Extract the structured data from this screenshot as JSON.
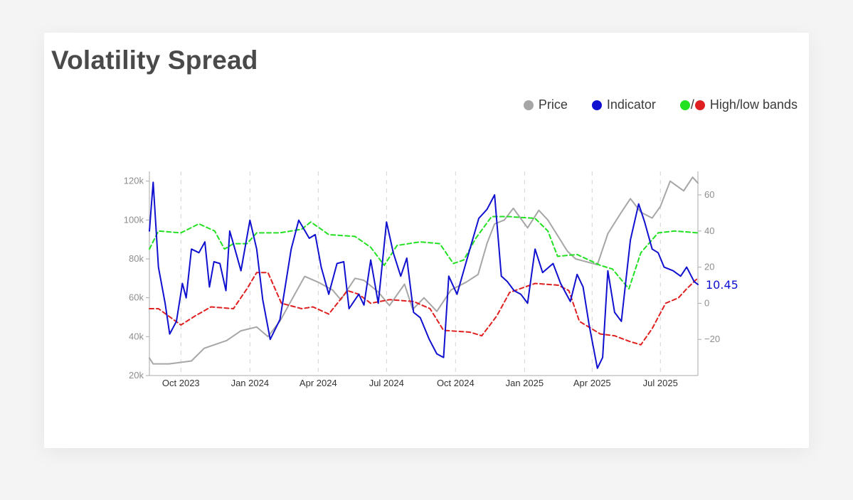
{
  "card": {
    "title": "Volatility Spread"
  },
  "legend": {
    "price_label": "Price",
    "indicator_label": "Indicator",
    "bands_slash": "/",
    "bands_label": "High/low bands"
  },
  "colors": {
    "price": "#a6a6a6",
    "indicator": "#1010d0",
    "high_band": "#22e022",
    "low_band": "#e02020"
  },
  "chart_data": {
    "type": "line",
    "title": "Volatility Spread",
    "x_range": [
      "2023-08-20",
      "2025-08-20"
    ],
    "x_ticks": [
      {
        "date": "2023-10-01",
        "label": "Oct 2023"
      },
      {
        "date": "2024-01-01",
        "label": "Jan 2024"
      },
      {
        "date": "2024-04-01",
        "label": "Apr 2024"
      },
      {
        "date": "2024-07-01",
        "label": "Jul 2024"
      },
      {
        "date": "2024-10-01",
        "label": "Oct 2024"
      },
      {
        "date": "2025-01-01",
        "label": "Jan 2025"
      },
      {
        "date": "2025-04-01",
        "label": "Apr 2025"
      },
      {
        "date": "2025-07-01",
        "label": "Jul 2025"
      }
    ],
    "y_left": {
      "range": [
        20000,
        125000
      ],
      "ticks": [
        20000,
        40000,
        60000,
        80000,
        100000,
        120000
      ],
      "labels": [
        "20k",
        "40k",
        "60k",
        "80k",
        "100k",
        "120k"
      ]
    },
    "y_right": {
      "range": [
        -40,
        73
      ],
      "ticks": [
        -20,
        0,
        20,
        40,
        60
      ],
      "labels": [
        "−20",
        "0",
        "20",
        "40",
        "60"
      ]
    },
    "grid": "vertical-dashed",
    "legend_position": "top-right",
    "last_value_label": "10.45",
    "series": [
      {
        "name": "Price",
        "axis": "left",
        "points": [
          [
            "2023-08-20",
            29000
          ],
          [
            "2023-08-25",
            26000
          ],
          [
            "2023-09-15",
            26000
          ],
          [
            "2023-10-15",
            27500
          ],
          [
            "2023-11-01",
            34000
          ],
          [
            "2023-12-01",
            38000
          ],
          [
            "2023-12-20",
            43000
          ],
          [
            "2024-01-10",
            45000
          ],
          [
            "2024-01-25",
            40000
          ],
          [
            "2024-02-10",
            48000
          ],
          [
            "2024-03-01",
            62000
          ],
          [
            "2024-03-14",
            71000
          ],
          [
            "2024-04-01",
            68000
          ],
          [
            "2024-04-20",
            64000
          ],
          [
            "2024-05-01",
            59000
          ],
          [
            "2024-05-20",
            70000
          ],
          [
            "2024-06-01",
            69000
          ],
          [
            "2024-06-20",
            63000
          ],
          [
            "2024-07-05",
            56000
          ],
          [
            "2024-07-25",
            67000
          ],
          [
            "2024-08-05",
            54000
          ],
          [
            "2024-08-20",
            60000
          ],
          [
            "2024-09-06",
            53000
          ],
          [
            "2024-09-25",
            64000
          ],
          [
            "2024-10-15",
            68000
          ],
          [
            "2024-10-31",
            72000
          ],
          [
            "2024-11-12",
            88000
          ],
          [
            "2024-11-22",
            98000
          ],
          [
            "2024-12-05",
            100000
          ],
          [
            "2024-12-17",
            106000
          ],
          [
            "2025-01-05",
            96000
          ],
          [
            "2025-01-20",
            105000
          ],
          [
            "2025-02-01",
            100000
          ],
          [
            "2025-02-27",
            84000
          ],
          [
            "2025-03-10",
            80000
          ],
          [
            "2025-04-08",
            77000
          ],
          [
            "2025-04-22",
            93000
          ],
          [
            "2025-05-10",
            104000
          ],
          [
            "2025-05-22",
            111000
          ],
          [
            "2025-06-05",
            104000
          ],
          [
            "2025-06-20",
            101000
          ],
          [
            "2025-07-01",
            107000
          ],
          [
            "2025-07-14",
            120000
          ],
          [
            "2025-08-01",
            115000
          ],
          [
            "2025-08-13",
            122000
          ],
          [
            "2025-08-20",
            119000
          ]
        ]
      },
      {
        "name": "Indicator",
        "axis": "right",
        "points": [
          [
            "2023-08-20",
            40
          ],
          [
            "2023-08-25",
            67
          ],
          [
            "2023-09-01",
            20
          ],
          [
            "2023-09-10",
            0
          ],
          [
            "2023-09-16",
            -17
          ],
          [
            "2023-09-25",
            -10
          ],
          [
            "2023-10-03",
            11
          ],
          [
            "2023-10-08",
            3
          ],
          [
            "2023-10-15",
            30
          ],
          [
            "2023-10-25",
            28
          ],
          [
            "2023-11-02",
            34
          ],
          [
            "2023-11-08",
            9
          ],
          [
            "2023-11-14",
            23
          ],
          [
            "2023-11-22",
            22
          ],
          [
            "2023-11-30",
            7
          ],
          [
            "2023-12-05",
            40
          ],
          [
            "2023-12-12",
            30
          ],
          [
            "2023-12-20",
            18
          ],
          [
            "2024-01-01",
            46
          ],
          [
            "2024-01-10",
            30
          ],
          [
            "2024-01-18",
            2
          ],
          [
            "2024-01-28",
            -20
          ],
          [
            "2024-02-10",
            -9
          ],
          [
            "2024-02-25",
            30
          ],
          [
            "2024-03-06",
            46
          ],
          [
            "2024-03-20",
            36
          ],
          [
            "2024-03-28",
            38
          ],
          [
            "2024-04-05",
            20
          ],
          [
            "2024-04-15",
            5
          ],
          [
            "2024-04-26",
            22
          ],
          [
            "2024-05-05",
            23
          ],
          [
            "2024-05-12",
            -3
          ],
          [
            "2024-05-25",
            5
          ],
          [
            "2024-06-01",
            -1
          ],
          [
            "2024-06-10",
            24
          ],
          [
            "2024-06-20",
            0
          ],
          [
            "2024-07-01",
            45
          ],
          [
            "2024-07-10",
            28
          ],
          [
            "2024-07-20",
            15
          ],
          [
            "2024-07-28",
            25
          ],
          [
            "2024-08-06",
            -5
          ],
          [
            "2024-08-15",
            -8
          ],
          [
            "2024-08-27",
            -20
          ],
          [
            "2024-09-06",
            -28
          ],
          [
            "2024-09-15",
            -30
          ],
          [
            "2024-09-22",
            15
          ],
          [
            "2024-10-03",
            5
          ],
          [
            "2024-10-18",
            27
          ],
          [
            "2024-11-01",
            47
          ],
          [
            "2024-11-12",
            52
          ],
          [
            "2024-11-22",
            60
          ],
          [
            "2024-12-01",
            15
          ],
          [
            "2024-12-09",
            12
          ],
          [
            "2024-12-18",
            7
          ],
          [
            "2024-12-27",
            5
          ],
          [
            "2025-01-05",
            0
          ],
          [
            "2025-01-15",
            30
          ],
          [
            "2025-01-25",
            17
          ],
          [
            "2025-02-08",
            22
          ],
          [
            "2025-02-18",
            11
          ],
          [
            "2025-03-03",
            1
          ],
          [
            "2025-03-12",
            16
          ],
          [
            "2025-03-20",
            9
          ],
          [
            "2025-03-28",
            -12
          ],
          [
            "2025-04-08",
            -36
          ],
          [
            "2025-04-15",
            -30
          ],
          [
            "2025-04-22",
            18
          ],
          [
            "2025-05-01",
            -5
          ],
          [
            "2025-05-10",
            -10
          ],
          [
            "2025-05-22",
            35
          ],
          [
            "2025-06-02",
            55
          ],
          [
            "2025-06-10",
            45
          ],
          [
            "2025-06-20",
            30
          ],
          [
            "2025-06-28",
            28
          ],
          [
            "2025-07-06",
            20
          ],
          [
            "2025-07-18",
            18
          ],
          [
            "2025-07-28",
            15
          ],
          [
            "2025-08-05",
            20
          ],
          [
            "2025-08-15",
            12
          ],
          [
            "2025-08-20",
            10.45
          ]
        ]
      },
      {
        "name": "High band",
        "axis": "right",
        "points": [
          [
            "2023-08-20",
            30
          ],
          [
            "2023-09-01",
            40
          ],
          [
            "2023-10-01",
            39
          ],
          [
            "2023-10-25",
            44
          ],
          [
            "2023-11-15",
            40
          ],
          [
            "2023-11-28",
            30
          ],
          [
            "2023-12-10",
            33
          ],
          [
            "2023-12-28",
            33
          ],
          [
            "2024-01-10",
            39
          ],
          [
            "2024-02-10",
            39
          ],
          [
            "2024-03-10",
            41
          ],
          [
            "2024-03-22",
            45
          ],
          [
            "2024-04-05",
            41
          ],
          [
            "2024-04-15",
            38
          ],
          [
            "2024-05-20",
            37
          ],
          [
            "2024-06-10",
            31
          ],
          [
            "2024-06-28",
            21
          ],
          [
            "2024-07-15",
            32
          ],
          [
            "2024-08-15",
            34
          ],
          [
            "2024-09-10",
            33
          ],
          [
            "2024-09-28",
            22
          ],
          [
            "2024-10-12",
            24
          ],
          [
            "2024-10-28",
            36
          ],
          [
            "2024-11-18",
            48
          ],
          [
            "2024-12-10",
            48
          ],
          [
            "2025-01-15",
            47
          ],
          [
            "2025-02-01",
            40
          ],
          [
            "2025-02-14",
            26
          ],
          [
            "2025-03-12",
            27
          ],
          [
            "2025-04-12",
            21
          ],
          [
            "2025-04-28",
            19
          ],
          [
            "2025-05-20",
            8
          ],
          [
            "2025-06-05",
            28
          ],
          [
            "2025-06-28",
            39
          ],
          [
            "2025-07-20",
            40
          ],
          [
            "2025-08-20",
            39
          ]
        ]
      },
      {
        "name": "Low band",
        "axis": "right",
        "points": [
          [
            "2023-08-20",
            -3
          ],
          [
            "2023-09-01",
            -3
          ],
          [
            "2023-10-01",
            -12
          ],
          [
            "2023-10-20",
            -7
          ],
          [
            "2023-11-10",
            -2
          ],
          [
            "2023-12-10",
            -3
          ],
          [
            "2023-12-28",
            8
          ],
          [
            "2024-01-10",
            17
          ],
          [
            "2024-01-25",
            17
          ],
          [
            "2024-02-12",
            0
          ],
          [
            "2024-03-10",
            -3
          ],
          [
            "2024-03-25",
            -2
          ],
          [
            "2024-04-15",
            -6
          ],
          [
            "2024-05-10",
            7
          ],
          [
            "2024-05-25",
            5
          ],
          [
            "2024-06-10",
            0
          ],
          [
            "2024-07-05",
            2
          ],
          [
            "2024-08-06",
            1
          ],
          [
            "2024-08-28",
            -3
          ],
          [
            "2024-09-15",
            -15
          ],
          [
            "2024-10-20",
            -16
          ],
          [
            "2024-11-05",
            -18
          ],
          [
            "2024-11-25",
            -7
          ],
          [
            "2024-12-12",
            6
          ],
          [
            "2025-01-15",
            11
          ],
          [
            "2025-02-15",
            10
          ],
          [
            "2025-03-01",
            7
          ],
          [
            "2025-03-15",
            -10
          ],
          [
            "2025-04-12",
            -17
          ],
          [
            "2025-05-01",
            -18
          ],
          [
            "2025-05-20",
            -21
          ],
          [
            "2025-06-05",
            -23
          ],
          [
            "2025-06-20",
            -14
          ],
          [
            "2025-07-08",
            0
          ],
          [
            "2025-07-25",
            3
          ],
          [
            "2025-08-05",
            8
          ],
          [
            "2025-08-20",
            14
          ]
        ]
      }
    ]
  }
}
